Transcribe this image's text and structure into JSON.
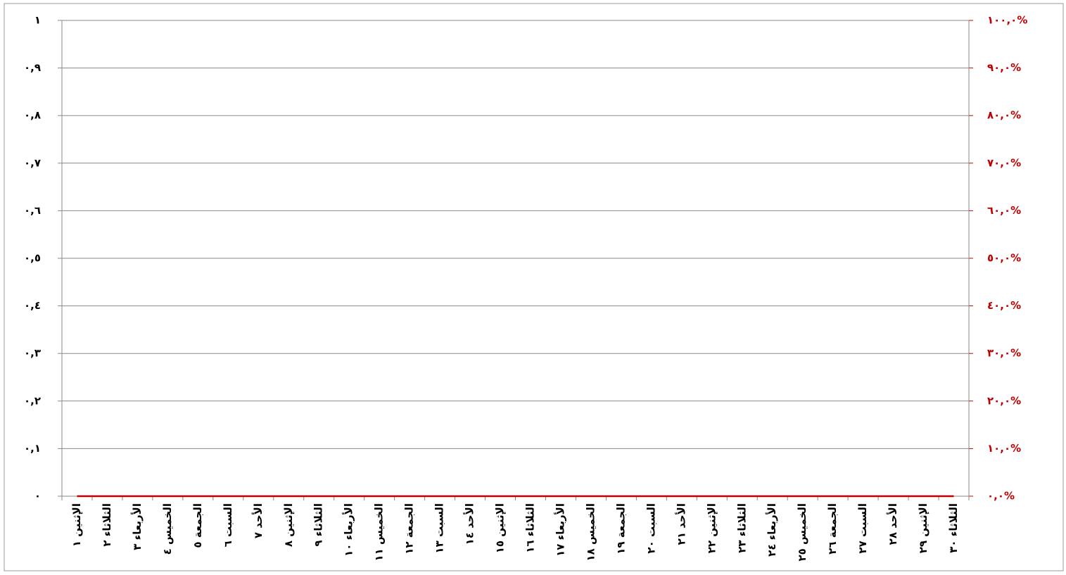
{
  "chart_data": {
    "type": "line",
    "categories": [
      "الإثنين ١",
      "الثلاثاء ٢",
      "الأربعاء ٣",
      "الخميس ٤",
      "الجمعة ٥",
      "السبت ٦",
      "الأحد ٧",
      "الإثنين ٨",
      "الثلاثاء ٩",
      "الأربعاء ١٠",
      "الخميس ١١",
      "الجمعة ١٢",
      "السبت ١٣",
      "الأحد ١٤",
      "الإثنين ١٥",
      "الثلاثاء ١٦",
      "الأربعاء ١٧",
      "الخميس ١٨",
      "الجمعة ١٩",
      "السبت ٢٠",
      "الأحد ٢١",
      "الإثنين ٢٢",
      "الثلاثاء ٢٣",
      "الأربعاء ٢٤",
      "الخميس ٢٥",
      "الجمعة ٢٦",
      "السبت ٢٧",
      "الأحد ٢٨",
      "الإثنين ٢٩",
      "الثلاثاء ٣٠"
    ],
    "series": [
      {
        "color": "#c00000",
        "axis": "y2",
        "values": [
          0,
          0,
          0,
          0,
          0,
          0,
          0,
          0,
          0,
          0,
          0,
          0,
          0,
          0,
          0,
          0,
          0,
          0,
          0,
          0,
          0,
          0,
          0,
          0,
          0,
          0,
          0,
          0,
          0,
          0
        ]
      }
    ],
    "ylim": [
      0,
      1
    ],
    "yticks": [
      {
        "value": 0,
        "label": "٠"
      },
      {
        "value": 0.1,
        "label": "٠,١"
      },
      {
        "value": 0.2,
        "label": "٠,٢"
      },
      {
        "value": 0.3,
        "label": "٠,٣"
      },
      {
        "value": 0.4,
        "label": "٠,٤"
      },
      {
        "value": 0.5,
        "label": "٠,٥"
      },
      {
        "value": 0.6,
        "label": "٠,٦"
      },
      {
        "value": 0.7,
        "label": "٠,٧"
      },
      {
        "value": 0.8,
        "label": "٠,٨"
      },
      {
        "value": 0.9,
        "label": "٠,٩"
      },
      {
        "value": 1,
        "label": "١"
      }
    ],
    "y2lim": [
      0,
      100
    ],
    "y2ticks": [
      {
        "value": 0,
        "label": "٠,٠%"
      },
      {
        "value": 10,
        "label": "١٠,٠%"
      },
      {
        "value": 20,
        "label": "٢٠,٠%"
      },
      {
        "value": 30,
        "label": "٣٠,٠%"
      },
      {
        "value": 40,
        "label": "٤٠,٠%"
      },
      {
        "value": 50,
        "label": "٥٠,٠%"
      },
      {
        "value": 60,
        "label": "٦٠,٠%"
      },
      {
        "value": 70,
        "label": "٧٠,٠%"
      },
      {
        "value": 80,
        "label": "٨٠,٠%"
      },
      {
        "value": 90,
        "label": "٩٠,٠%"
      },
      {
        "value": 100,
        "label": "١٠٠,٠%"
      }
    ],
    "y2_color": "#c00000",
    "grid": true
  }
}
